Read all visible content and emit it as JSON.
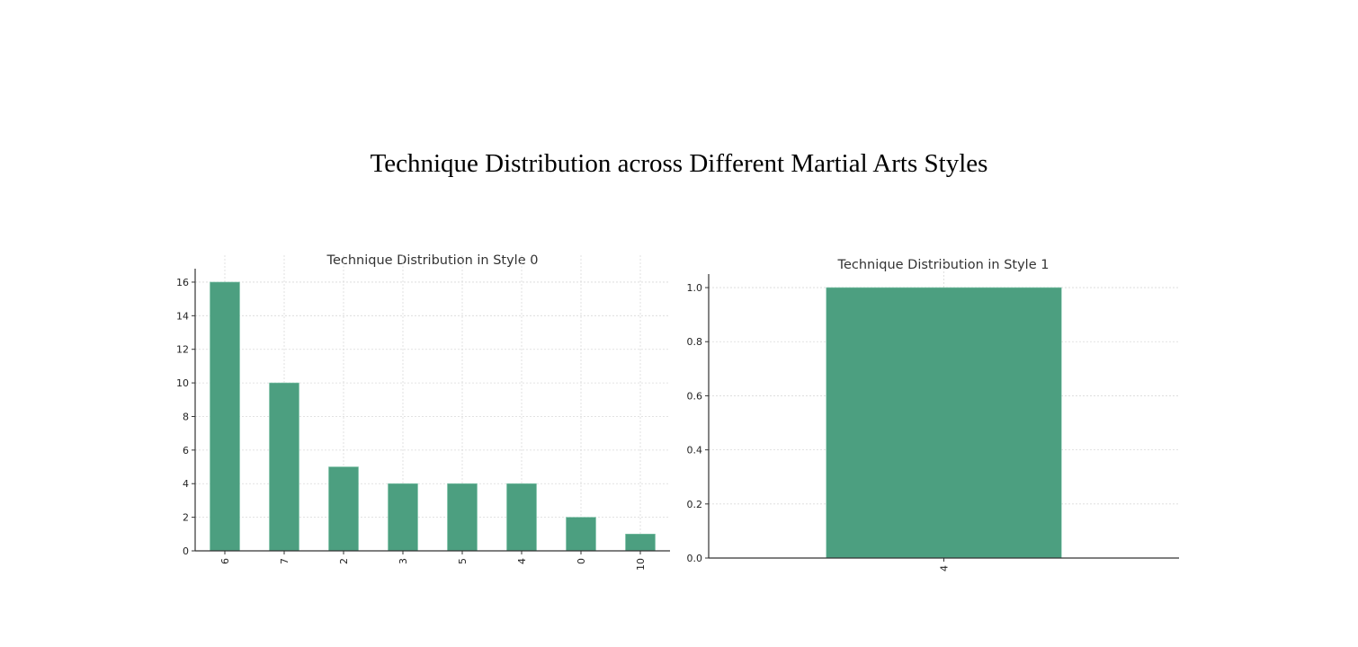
{
  "page": {
    "title": "Technique Distribution across Different Martial Arts Styles"
  },
  "colors": {
    "bar": "#4c9f80",
    "background": "#ffffff"
  },
  "chart_data": [
    {
      "type": "bar",
      "title": "Technique Distribution in Style 0",
      "xlabel": "",
      "ylabel": "",
      "categories": [
        "6",
        "7",
        "2",
        "3",
        "5",
        "4",
        "0",
        "10"
      ],
      "values": [
        16,
        10,
        5,
        4,
        4,
        4,
        2,
        1
      ],
      "ylim": [
        0,
        16.8
      ],
      "yticks": [
        0,
        2,
        4,
        6,
        8,
        10,
        12,
        14,
        16
      ],
      "grid": true,
      "legend": null
    },
    {
      "type": "bar",
      "title": "Technique Distribution in Style 1",
      "xlabel": "",
      "ylabel": "",
      "categories": [
        "4"
      ],
      "values": [
        1
      ],
      "ylim": [
        0,
        1.05
      ],
      "yticks": [
        "0.0",
        "0.2",
        "0.4",
        "0.6",
        "0.8",
        "1.0"
      ],
      "grid": true,
      "legend": null
    }
  ]
}
